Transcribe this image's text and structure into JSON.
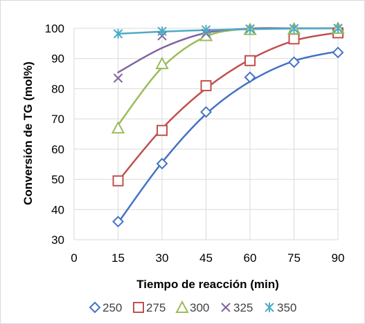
{
  "chart_data": {
    "type": "scatter",
    "title": "",
    "xlabel": "Tiempo de reacción (min)",
    "ylabel": "Conversión de TG (mol%)",
    "xlim": [
      0,
      90
    ],
    "ylim": [
      30,
      100
    ],
    "x_ticks": [
      0,
      15,
      30,
      45,
      60,
      75,
      90
    ],
    "y_ticks": [
      30,
      40,
      50,
      60,
      70,
      80,
      90,
      100
    ],
    "grid": "vertical-and-horizontal",
    "legend_position": "bottom",
    "series": [
      {
        "name": "250",
        "marker": "diamond",
        "color": "#4472C4",
        "x": [
          15,
          30,
          45,
          60,
          75,
          90
        ],
        "values": [
          36,
          55.2,
          72.3,
          83.8,
          88.8,
          92
        ]
      },
      {
        "name": "275",
        "marker": "square",
        "color": "#C0504D",
        "x": [
          15,
          30,
          45,
          60,
          75,
          90
        ],
        "values": [
          49.5,
          66.2,
          81,
          89.3,
          96.5,
          98.5
        ]
      },
      {
        "name": "300",
        "marker": "triangle",
        "color": "#9BBB59",
        "x": [
          15,
          30,
          45,
          60,
          75,
          90
        ],
        "values": [
          67,
          88.3,
          97.6,
          99.6,
          99.8,
          100
        ]
      },
      {
        "name": "325",
        "marker": "x",
        "color": "#8064A2",
        "x": [
          15,
          30,
          45,
          60,
          75,
          90
        ],
        "values": [
          83.5,
          97.5,
          98.3,
          99.8,
          99.9,
          100
        ]
      },
      {
        "name": "350",
        "marker": "star",
        "color": "#4BACC6",
        "x": [
          15,
          30,
          45,
          60,
          75,
          90
        ],
        "values": [
          98.2,
          99,
          99.5,
          99.8,
          99.9,
          100
        ]
      }
    ],
    "fit_curves": [
      {
        "series": "250",
        "x": [
          15,
          30,
          45,
          60,
          75,
          90
        ],
        "values": [
          35.6,
          55.6,
          71.6,
          82.4,
          89.2,
          92.4
        ]
      },
      {
        "series": "275",
        "x": [
          15,
          30,
          45,
          60,
          75,
          90
        ],
        "values": [
          49.4,
          66.8,
          80.1,
          89.7,
          95.9,
          98.6
        ]
      },
      {
        "series": "300",
        "x": [
          15,
          30,
          45,
          60,
          75,
          90
        ],
        "values": [
          68,
          87,
          97.3,
          99.9,
          100,
          100
        ]
      },
      {
        "series": "325",
        "x": [
          15,
          30,
          45,
          60,
          75,
          90
        ],
        "values": [
          85.4,
          93.5,
          98.5,
          99.9,
          100,
          100
        ]
      },
      {
        "series": "350",
        "x": [
          15,
          30,
          45,
          60,
          75,
          90
        ],
        "values": [
          98.2,
          98.9,
          99.4,
          99.7,
          99.9,
          100
        ]
      }
    ]
  }
}
